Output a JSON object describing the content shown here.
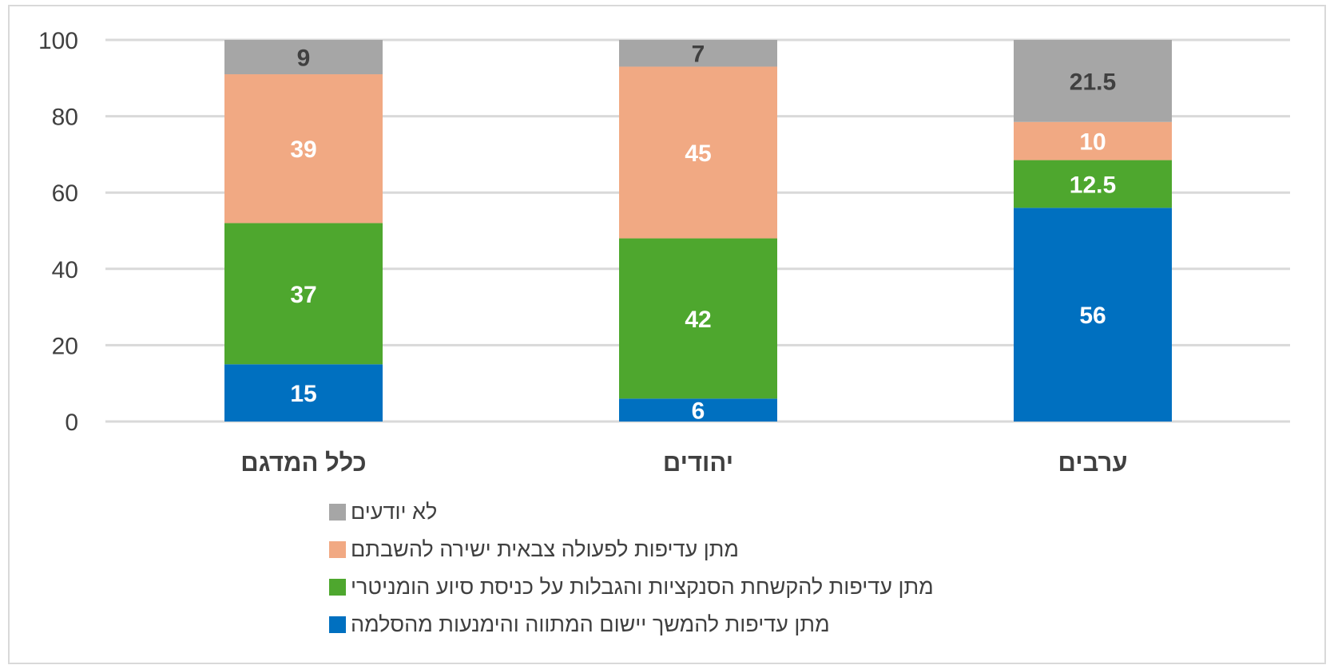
{
  "chart_data": {
    "type": "bar",
    "stacked": true,
    "categories": [
      "כלל המדגם",
      "יהודים",
      "ערבים"
    ],
    "ylim": [
      0,
      100
    ],
    "yticks": [
      0,
      20,
      40,
      60,
      80,
      100
    ],
    "grid": true,
    "legend_position": "bottom",
    "series": [
      {
        "name": "מתן עדיפות להמשך יישום המתווה והימנעות מהסלמה",
        "color": "#0070c0",
        "label_color": "#ffffff",
        "values": [
          15,
          6,
          56
        ]
      },
      {
        "name": "מתן עדיפות להקשחת הסנקציות והגבלות על כניסת סיוע הומניטרי",
        "color": "#4ea72e",
        "label_color": "#ffffff",
        "values": [
          37,
          42,
          12.5
        ]
      },
      {
        "name": "מתן עדיפות לפעולה צבאית ישירה להשבתם",
        "color": "#f1a983",
        "label_color": "#ffffff",
        "values": [
          39,
          45,
          10
        ]
      },
      {
        "name": "לא יודעים",
        "color": "#a6a6a6",
        "label_color": "#404040",
        "values": [
          9,
          7,
          21.5
        ]
      }
    ]
  }
}
